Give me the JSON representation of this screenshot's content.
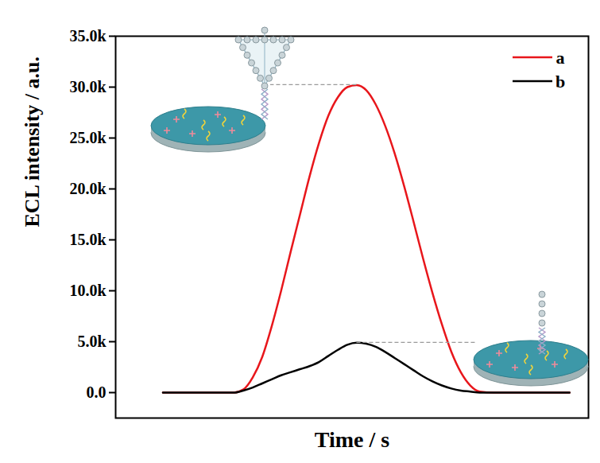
{
  "chart_data": {
    "type": "line",
    "xlabel": "Time / s",
    "ylabel": "ECL intensity / a.u.",
    "x": [
      10,
      20,
      25,
      27,
      29,
      31,
      33,
      35,
      37,
      39,
      41,
      43,
      45,
      47,
      49,
      51,
      53,
      55,
      57,
      59,
      61,
      63,
      65,
      67,
      69,
      71,
      73,
      75,
      77,
      80,
      85,
      96
    ],
    "xlim": [
      0,
      100
    ],
    "xticks": [],
    "ylim": [
      -2500,
      35000
    ],
    "yticks": [
      {
        "value": 0,
        "label": "0.0"
      },
      {
        "value": 5000,
        "label": "5.0k"
      },
      {
        "value": 10000,
        "label": "10.0k"
      },
      {
        "value": 15000,
        "label": "15.0k"
      },
      {
        "value": 20000,
        "label": "20.0k"
      },
      {
        "value": 25000,
        "label": "25.0k"
      },
      {
        "value": 30000,
        "label": "30.0k"
      },
      {
        "value": 35000,
        "label": "35.0k"
      }
    ],
    "tick_labels": "y",
    "grid": false,
    "legend": "top-right",
    "series": [
      {
        "name": "a",
        "color": "#e8161b",
        "values": [
          0,
          0,
          0,
          300,
          1500,
          3500,
          6500,
          10000,
          13800,
          17500,
          21200,
          24500,
          27200,
          29000,
          30000,
          30200,
          29700,
          28300,
          26200,
          23500,
          20300,
          16800,
          13200,
          9800,
          6700,
          4000,
          2000,
          700,
          100,
          0,
          0,
          0
        ]
      },
      {
        "name": "b",
        "color": "#000000",
        "values": [
          0,
          0,
          0,
          200,
          500,
          900,
          1300,
          1700,
          2000,
          2300,
          2600,
          3000,
          3600,
          4200,
          4700,
          4900,
          4800,
          4500,
          4000,
          3400,
          2800,
          2200,
          1600,
          1100,
          700,
          400,
          200,
          100,
          0,
          0,
          0,
          0
        ]
      }
    ]
  }
}
